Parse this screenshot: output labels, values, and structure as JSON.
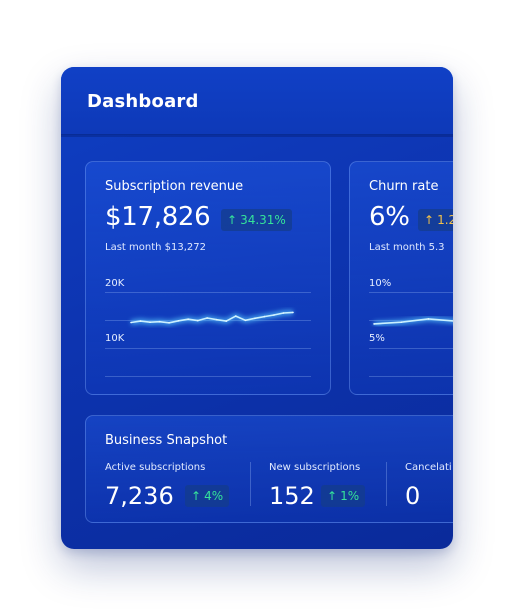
{
  "header": {
    "title": "Dashboard"
  },
  "revenue_card": {
    "title": "Subscription revenue",
    "value": "$17,826",
    "change": "34.31%",
    "last_month": "Last month $13,272",
    "axis_top": "20K",
    "axis_mid": "10K"
  },
  "churn_card": {
    "title": "Churn rate",
    "value": "6%",
    "change": "1.2",
    "last_month": "Last month 5.3",
    "axis_top": "10%",
    "axis_mid": "5%"
  },
  "snapshot": {
    "title": "Business Snapshot",
    "metrics": [
      {
        "label": "Active subscriptions",
        "value": "7,236",
        "change": "4%"
      },
      {
        "label": "New subscriptions",
        "value": "152",
        "change": "1%"
      },
      {
        "label": "Cancelati",
        "value": "0"
      }
    ]
  },
  "colors": {
    "accent_positive": "#35e39a",
    "accent_warning": "#f2c14a",
    "background_primary": "#0d34b0"
  },
  "icons": {
    "trend_up": "up-arrow-icon"
  },
  "chart_data": [
    {
      "type": "line",
      "title": "Subscription revenue",
      "ylim": [
        0,
        20000
      ],
      "ticks": [
        "10K",
        "20K"
      ],
      "grid": true,
      "x": [
        1,
        2,
        3,
        4,
        5,
        6,
        7,
        8,
        9,
        10,
        11,
        12,
        13,
        14,
        15,
        16,
        17,
        18
      ],
      "series": [
        {
          "values": [
            9100,
            9600,
            9200,
            9400,
            9000,
            9700,
            10300,
            9800,
            10700,
            10100,
            9600,
            11400,
            9900,
            10600,
            11200,
            11800,
            12500,
            12700
          ]
        }
      ]
    },
    {
      "type": "line",
      "title": "Churn rate",
      "ylim": [
        0,
        10
      ],
      "ticks": [
        "5%",
        "10%"
      ],
      "grid": true,
      "x": [
        1,
        2,
        3,
        4,
        5,
        6
      ],
      "series": [
        {
          "values": [
            4.3,
            4.6,
            5.2,
            4.8,
            4.6,
            5.0
          ]
        }
      ]
    }
  ]
}
